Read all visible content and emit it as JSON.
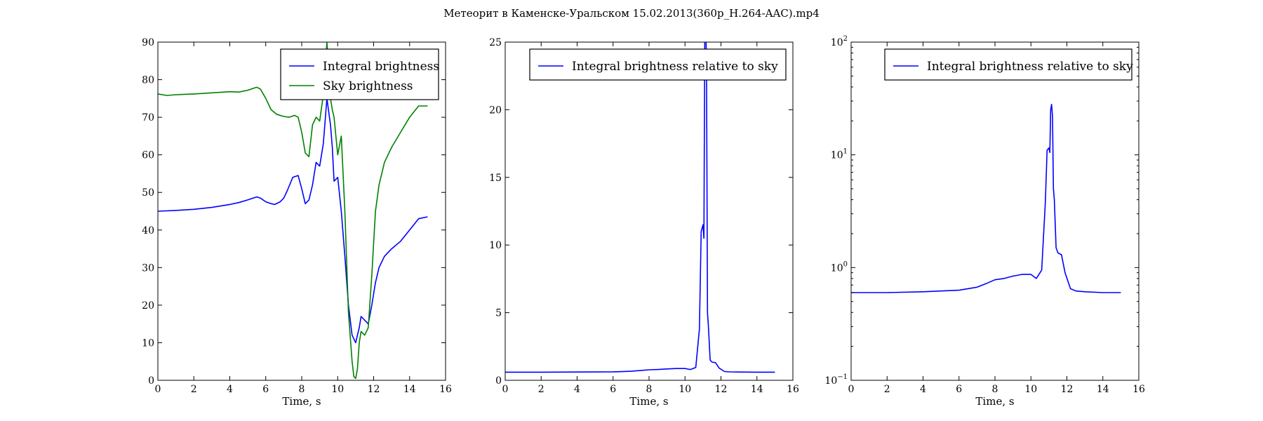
{
  "figure": {
    "title": "Метеорит в Каменске-Уральском 15.02.2013(360p_H.264-AAC).mp4"
  },
  "colors": {
    "blue": "#0000ff",
    "green": "#008000"
  },
  "chart_data": [
    {
      "type": "line",
      "xlabel": "Time, s",
      "ylabel": "",
      "xlim": [
        0,
        16
      ],
      "ylim": [
        0,
        90
      ],
      "yscale": "linear",
      "xticks": [
        0,
        2,
        4,
        6,
        8,
        10,
        12,
        14,
        16
      ],
      "yticks": [
        0,
        10,
        20,
        30,
        40,
        50,
        60,
        70,
        80,
        90
      ],
      "legend": "top-right",
      "grid": false,
      "series": [
        {
          "name": "Integral brightness",
          "color": "#0000ff",
          "x": [
            0,
            1,
            2,
            3,
            4,
            4.5,
            5,
            5.5,
            5.7,
            6,
            6.3,
            6.5,
            6.8,
            7,
            7.2,
            7.5,
            7.8,
            8,
            8.2,
            8.4,
            8.6,
            8.8,
            9,
            9.2,
            9.4,
            9.6,
            9.7,
            9.8,
            10,
            10.2,
            10.4,
            10.6,
            10.8,
            11,
            11.1,
            11.2,
            11.3,
            11.5,
            11.7,
            11.9,
            12.1,
            12.3,
            12.6,
            13,
            13.5,
            14,
            14.5,
            15
          ],
          "y": [
            45,
            45.2,
            45.5,
            46,
            46.8,
            47.3,
            48,
            48.8,
            48.5,
            47.5,
            47,
            46.8,
            47.5,
            48.5,
            50.5,
            54,
            54.5,
            51,
            47,
            48,
            52,
            58,
            57,
            63,
            75,
            68,
            62,
            53,
            54,
            45,
            33,
            20,
            12,
            10,
            12,
            14,
            17,
            16,
            15,
            20,
            26,
            30,
            33,
            35,
            37,
            40,
            43,
            43.5
          ]
        },
        {
          "name": "Sky brightness",
          "color": "#008000",
          "x": [
            0,
            0.5,
            1,
            2,
            3,
            4,
            4.5,
            5,
            5.5,
            5.7,
            6,
            6.3,
            6.6,
            7,
            7.3,
            7.6,
            7.8,
            8,
            8.2,
            8.4,
            8.6,
            8.8,
            9,
            9.2,
            9.4,
            9.6,
            9.7,
            9.8,
            10,
            10.2,
            10.4,
            10.6,
            10.8,
            10.9,
            11,
            11.1,
            11.2,
            11.3,
            11.5,
            11.7,
            11.9,
            12.1,
            12.3,
            12.6,
            13,
            13.5,
            14,
            14.5,
            15
          ],
          "y": [
            76.2,
            75.8,
            76,
            76.2,
            76.5,
            76.8,
            76.7,
            77.2,
            78,
            77.5,
            75,
            72,
            70.8,
            70.2,
            70,
            70.5,
            70,
            66,
            60.5,
            59.5,
            68,
            70,
            69,
            76,
            90,
            75,
            72,
            70,
            60,
            65,
            45,
            18,
            5,
            1,
            0.5,
            3,
            10,
            13,
            12,
            14,
            28,
            45,
            52,
            58,
            62,
            66,
            70,
            73,
            73
          ]
        }
      ]
    },
    {
      "type": "line",
      "xlabel": "Time, s",
      "ylabel": "",
      "xlim": [
        0,
        16
      ],
      "ylim": [
        0,
        25
      ],
      "yscale": "linear",
      "xticks": [
        0,
        2,
        4,
        6,
        8,
        10,
        12,
        14,
        16
      ],
      "yticks": [
        0,
        5,
        10,
        15,
        20,
        25
      ],
      "legend": "top-right",
      "grid": false,
      "series": [
        {
          "name": "Integral brightness relative to sky",
          "color": "#0000ff",
          "x": [
            0,
            2,
            4,
            6,
            7,
            7.5,
            8,
            8.5,
            9,
            9.5,
            10,
            10.3,
            10.6,
            10.8,
            10.9,
            11,
            11.05,
            11.1,
            11.15,
            11.2,
            11.25,
            11.3,
            11.4,
            11.5,
            11.7,
            11.9,
            12.2,
            12.5,
            13,
            14,
            15
          ],
          "y": [
            0.6,
            0.6,
            0.61,
            0.63,
            0.67,
            0.72,
            0.78,
            0.8,
            0.84,
            0.87,
            0.87,
            0.8,
            0.95,
            3.8,
            11,
            11.5,
            10.5,
            25,
            28,
            22,
            5,
            4,
            1.5,
            1.35,
            1.3,
            0.9,
            0.65,
            0.62,
            0.61,
            0.6,
            0.6
          ]
        }
      ]
    },
    {
      "type": "line",
      "xlabel": "Time, s",
      "ylabel": "",
      "xlim": [
        0,
        16
      ],
      "ylim": [
        0.1,
        100
      ],
      "yscale": "log",
      "xticks": [
        0,
        2,
        4,
        6,
        8,
        10,
        12,
        14,
        16
      ],
      "yticks": [
        "10^-1",
        "10^0",
        "10^1",
        "10^2"
      ],
      "legend": "top-right",
      "grid": false,
      "series": [
        {
          "name": "Integral brightness relative to sky",
          "color": "#0000ff",
          "x": [
            0,
            2,
            4,
            6,
            7,
            7.5,
            8,
            8.5,
            9,
            9.5,
            10,
            10.3,
            10.6,
            10.8,
            10.9,
            11,
            11.05,
            11.1,
            11.15,
            11.2,
            11.25,
            11.3,
            11.4,
            11.5,
            11.7,
            11.9,
            12.2,
            12.5,
            13,
            14,
            15
          ],
          "y": [
            0.6,
            0.6,
            0.61,
            0.63,
            0.67,
            0.72,
            0.78,
            0.8,
            0.84,
            0.87,
            0.87,
            0.8,
            0.95,
            3.8,
            11,
            11.5,
            10.5,
            25,
            28,
            22,
            5,
            4,
            1.5,
            1.35,
            1.3,
            0.9,
            0.65,
            0.62,
            0.61,
            0.6,
            0.6
          ]
        }
      ]
    }
  ]
}
